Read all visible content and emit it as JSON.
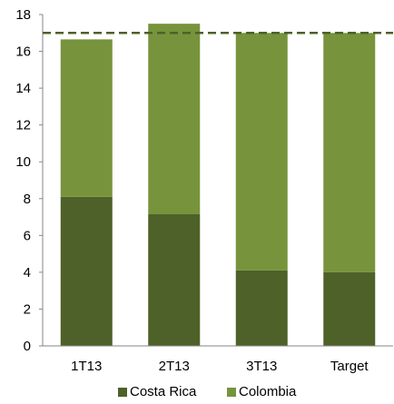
{
  "chart_data": {
    "type": "bar",
    "stacked": true,
    "categories": [
      "1T13",
      "2T13",
      "3T13",
      "Target"
    ],
    "series": [
      {
        "name": "Costa Rica",
        "values": [
          8.1,
          7.15,
          4.1,
          4.0
        ],
        "color": "#4e6128"
      },
      {
        "name": "Colombia",
        "values": [
          8.55,
          10.35,
          12.9,
          13.0
        ],
        "color": "#77933c"
      }
    ],
    "ylim": [
      0,
      18
    ],
    "yticks": [
      0,
      2,
      4,
      6,
      8,
      10,
      12,
      14,
      16,
      18
    ],
    "reference_line": {
      "value": 17.0,
      "style": "dashed",
      "color": "#4e6128"
    },
    "grid": false,
    "legend_position": "bottom",
    "title": "",
    "xlabel": "",
    "ylabel": ""
  }
}
